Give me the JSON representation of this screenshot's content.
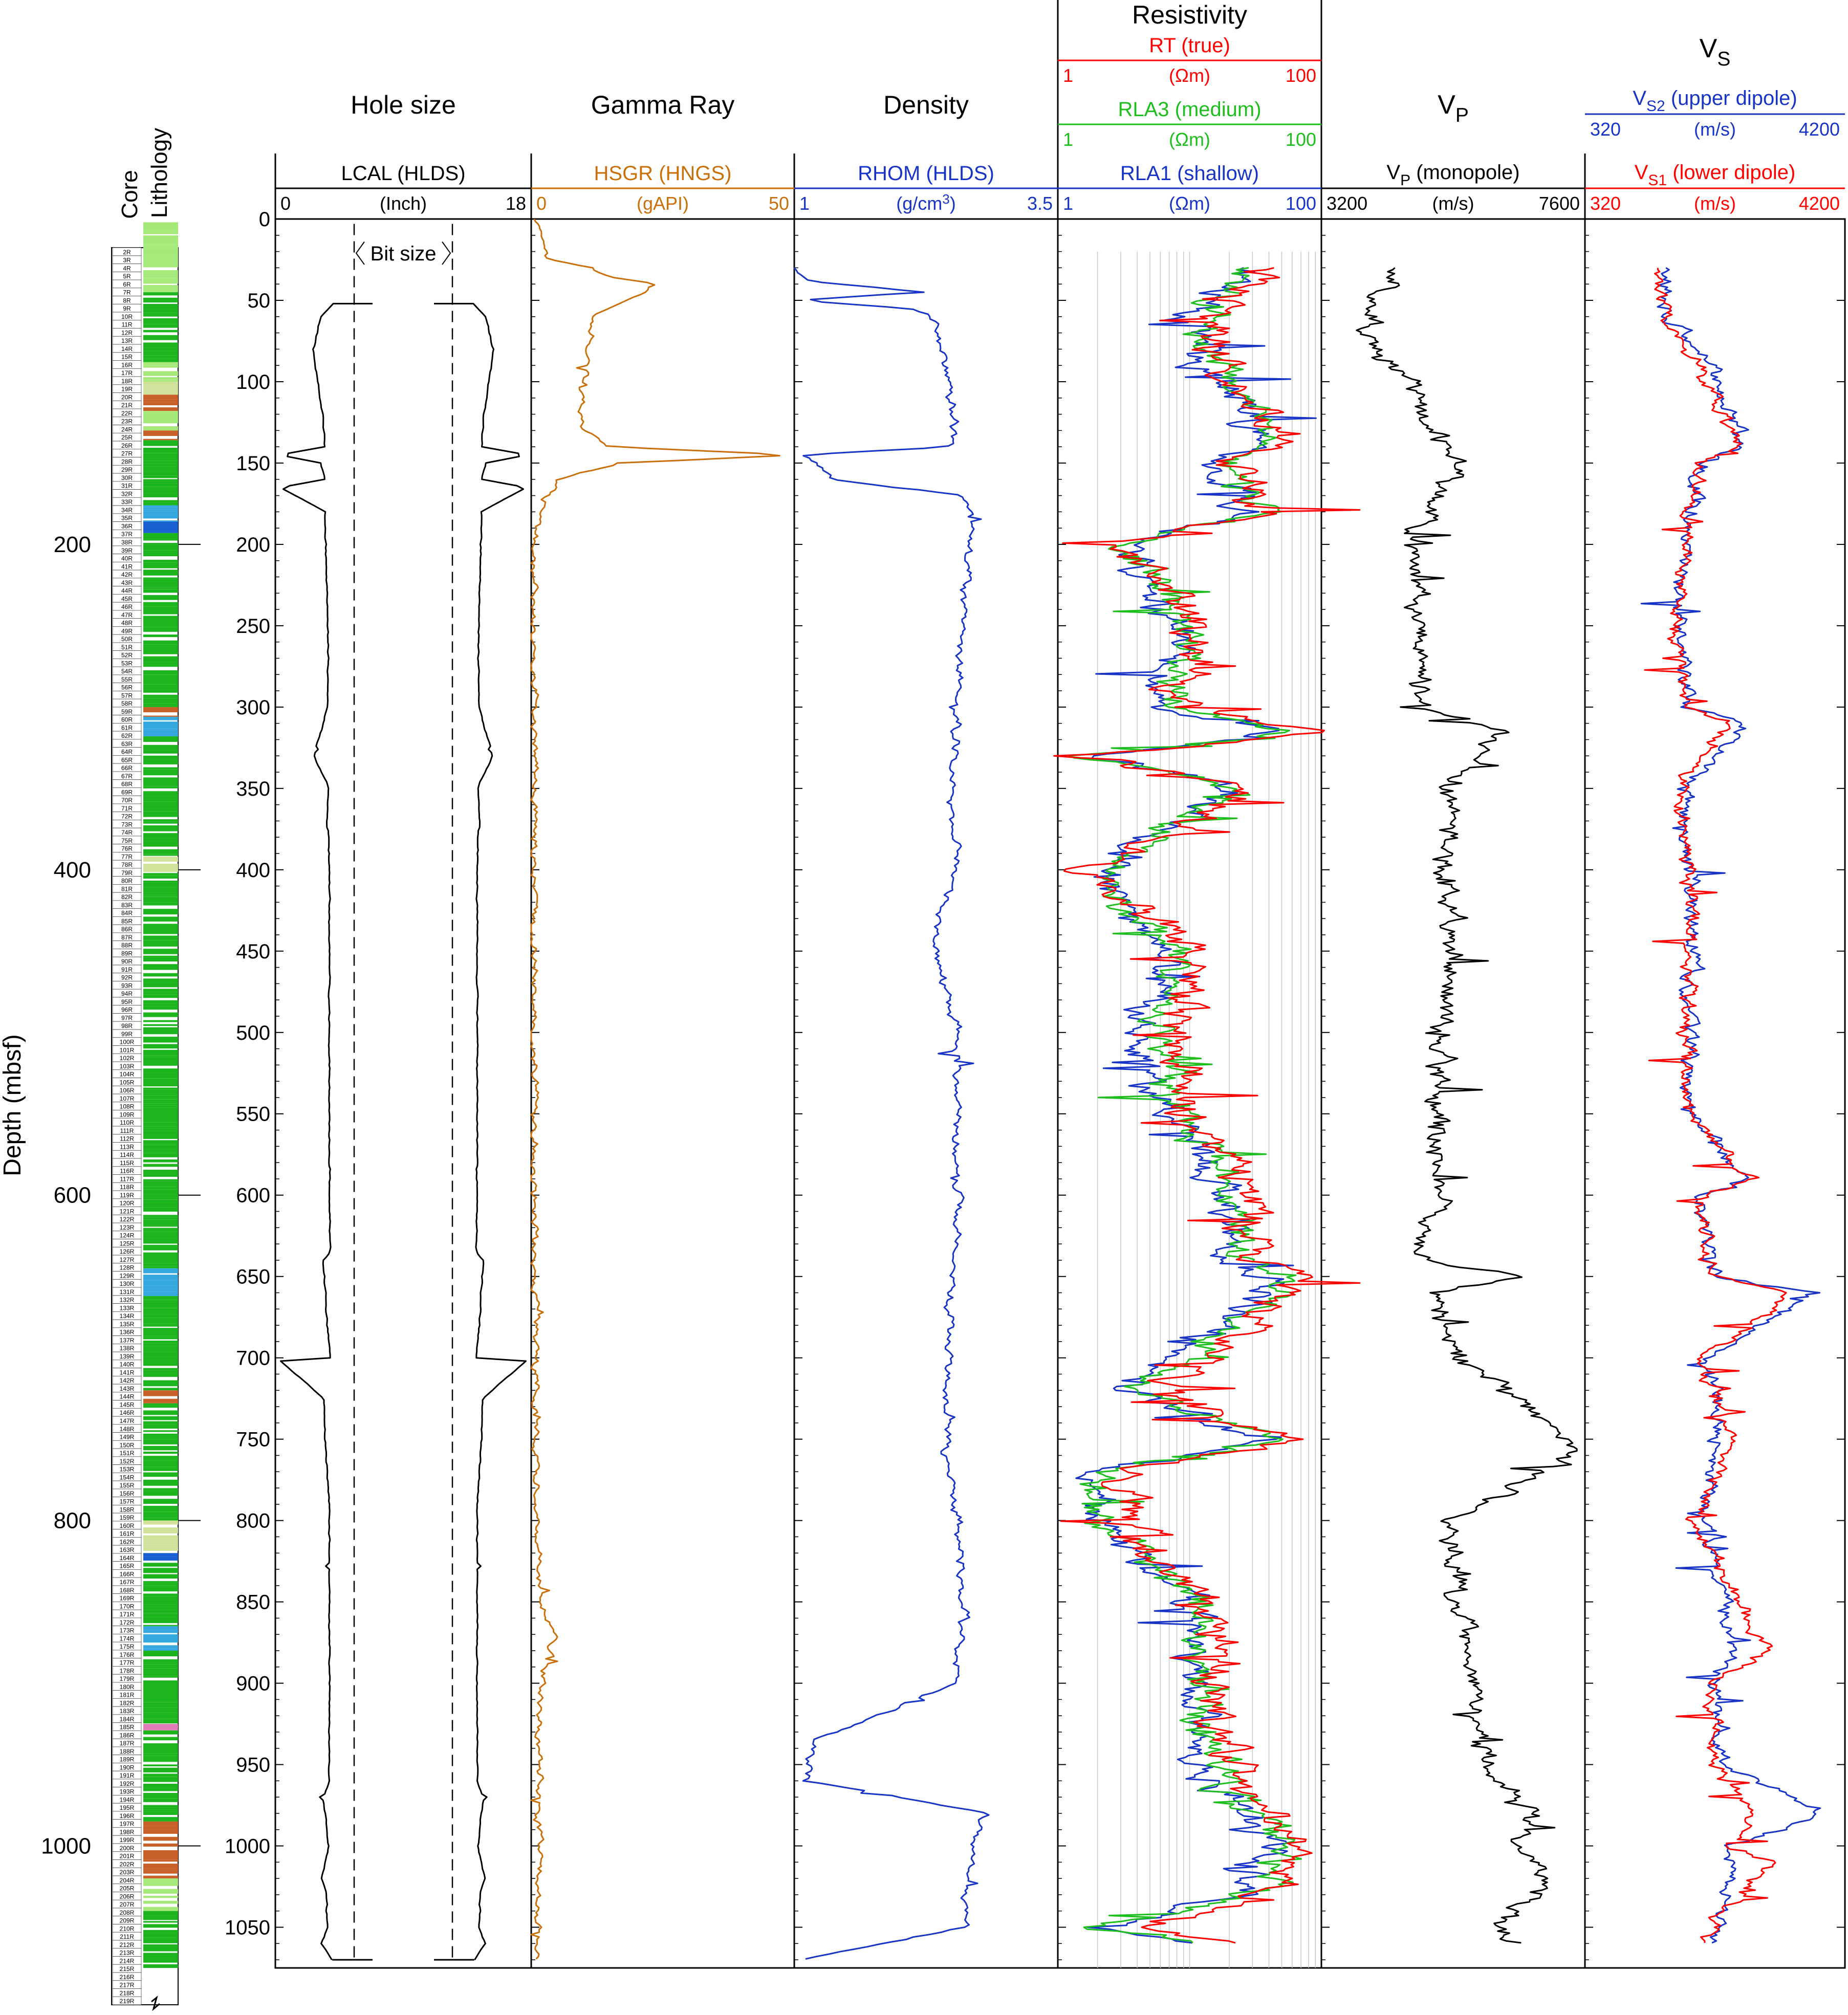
{
  "chart_data": {
    "type": "well-log",
    "depth_axis": {
      "label": "Depth (mbsf)",
      "range": [
        0,
        1075
      ],
      "major_ticks": [
        200,
        400,
        600,
        800,
        1000
      ],
      "track_ticks": [
        0,
        50,
        100,
        150,
        200,
        250,
        300,
        350,
        400,
        450,
        500,
        550,
        600,
        650,
        700,
        750,
        800,
        850,
        900,
        950,
        1000,
        1050
      ],
      "inverted": true
    },
    "core_column": {
      "label_line1": "Core",
      "label_line2": "Lithology",
      "cores_first": 2,
      "cores_last": 219,
      "core_suffix": "R",
      "lithology_colors": {
        "basalt": "#1db51d",
        "light_basalt": "#a6e87a",
        "breccia": "#d1e39a",
        "sediment": "#c8602a",
        "gabbro": "#36a8e0",
        "dike": "#1a5fd1",
        "ash": "#e07ab8"
      },
      "intervals": [
        {
          "from": 2,
          "to": 45,
          "lith": "light_basalt"
        },
        {
          "from": 45,
          "to": 88,
          "lith": "basalt"
        },
        {
          "from": 88,
          "to": 100,
          "lith": "light_basalt"
        },
        {
          "from": 100,
          "to": 108,
          "lith": "breccia"
        },
        {
          "from": 108,
          "to": 118,
          "lith": "sediment"
        },
        {
          "from": 118,
          "to": 130,
          "lith": "light_basalt"
        },
        {
          "from": 130,
          "to": 136,
          "lith": "sediment"
        },
        {
          "from": 136,
          "to": 176,
          "lith": "basalt"
        },
        {
          "from": 176,
          "to": 186,
          "lith": "gabbro"
        },
        {
          "from": 186,
          "to": 193,
          "lith": "dike"
        },
        {
          "from": 193,
          "to": 300,
          "lith": "basalt"
        },
        {
          "from": 300,
          "to": 306,
          "lith": "sediment"
        },
        {
          "from": 306,
          "to": 318,
          "lith": "gabbro"
        },
        {
          "from": 318,
          "to": 392,
          "lith": "basalt"
        },
        {
          "from": 392,
          "to": 402,
          "lith": "breccia"
        },
        {
          "from": 402,
          "to": 645,
          "lith": "basalt"
        },
        {
          "from": 645,
          "to": 662,
          "lith": "gabbro"
        },
        {
          "from": 662,
          "to": 720,
          "lith": "basalt"
        },
        {
          "from": 720,
          "to": 728,
          "lith": "sediment"
        },
        {
          "from": 728,
          "to": 800,
          "lith": "basalt"
        },
        {
          "from": 800,
          "to": 820,
          "lith": "breccia"
        },
        {
          "from": 820,
          "to": 826,
          "lith": "dike"
        },
        {
          "from": 826,
          "to": 865,
          "lith": "basalt"
        },
        {
          "from": 865,
          "to": 880,
          "lith": "gabbro"
        },
        {
          "from": 880,
          "to": 925,
          "lith": "basalt"
        },
        {
          "from": 925,
          "to": 929,
          "lith": "ash"
        },
        {
          "from": 929,
          "to": 985,
          "lith": "basalt"
        },
        {
          "from": 985,
          "to": 1020,
          "lith": "sediment"
        },
        {
          "from": 1020,
          "to": 1040,
          "lith": "light_basalt"
        },
        {
          "from": 1040,
          "to": 1075,
          "lith": "basalt"
        }
      ]
    },
    "tracks": [
      {
        "title": "Hole size",
        "curves": [
          {
            "name": "LCAL (HLDS)",
            "unit": "(Inch)",
            "min": "0",
            "max": "18",
            "color": "#000000"
          }
        ],
        "annotation": "Bit size",
        "bit_size": 9.875,
        "data": {
          "depth": [
            52,
            60,
            80,
            100,
            120,
            140,
            145,
            150,
            160,
            165,
            180,
            200,
            250,
            300,
            330,
            350,
            370,
            380,
            400,
            500,
            600,
            635,
            640,
            700,
            702,
            725,
            800,
            900,
            960,
            970,
            1000,
            1020,
            1030,
            1050,
            1060,
            1070
          ],
          "value": [
            9.9,
            11.6,
            12.7,
            12.1,
            11.3,
            11.1,
            17.5,
            11.6,
            11.0,
            17.3,
            11.1,
            10.9,
            10.6,
            10.6,
            12.6,
            10.5,
            10.7,
            10.5,
            10.4,
            10.4,
            10.4,
            10.3,
            11.3,
            10.3,
            17.2,
            11.2,
            10.4,
            10.4,
            10.4,
            11.3,
            10.5,
            11.5,
            10.8,
            10.7,
            11.5,
            10.0
          ]
        }
      },
      {
        "title": "Gamma Ray",
        "curves": [
          {
            "name": "HSGR (HNGS)",
            "unit": "(gAPI)",
            "min": "0",
            "max": "50",
            "color": "#c9700a"
          }
        ],
        "data": {
          "depth": [
            0,
            10,
            25,
            30,
            35,
            40,
            50,
            60,
            80,
            100,
            120,
            130,
            140,
            145,
            150,
            160,
            170,
            180,
            190,
            200,
            300,
            400,
            500,
            600,
            700,
            800,
            850,
            870,
            900,
            950,
            1000,
            1050,
            1070
          ],
          "value": [
            1,
            2,
            3,
            12,
            14,
            24,
            18,
            12,
            11,
            10,
            9,
            10,
            15,
            50,
            17,
            5,
            3,
            2,
            1,
            0.6,
            0.5,
            0.5,
            0.5,
            0.6,
            0.7,
            0.9,
            1.9,
            4.5,
            1.9,
            1.6,
            1.4,
            1.3,
            1.0
          ]
        }
      },
      {
        "title": "Density",
        "curves": [
          {
            "name": "RHOM (HLDS)",
            "unit": "(g/cm3)",
            "min": "1",
            "max": "3.5",
            "color": "#1834c7"
          }
        ],
        "data": {
          "depth": [
            30,
            38,
            45,
            50,
            55,
            60,
            100,
            140,
            145,
            160,
            170,
            180,
            200,
            300,
            370,
            400,
            440,
            500,
            600,
            700,
            760,
            800,
            850,
            900,
            935,
            960,
            980,
            1000,
            1050,
            1070
          ],
          "value": [
            1.03,
            1.1,
            2.2,
            1.05,
            2.1,
            2.3,
            2.5,
            2.5,
            1.1,
            1.4,
            2.6,
            2.7,
            2.65,
            2.55,
            2.5,
            2.55,
            2.3,
            2.55,
            2.55,
            2.45,
            2.45,
            2.55,
            2.6,
            2.55,
            1.2,
            1.1,
            2.8,
            2.7,
            2.6,
            1.05
          ]
        }
      },
      {
        "title": "Resistivity",
        "log_scale": true,
        "curves": [
          {
            "name": "RT (true)",
            "unit": "(Ωm)",
            "min": "1",
            "max": "100",
            "color": "#ff0000"
          },
          {
            "name": "RLA3 (medium)",
            "unit": "(Ωm)",
            "min": "1",
            "max": "100",
            "color": "#1dbe1d"
          },
          {
            "name": "RLA1 (shallow)",
            "unit": "(Ωm)",
            "min": "1",
            "max": "100",
            "color": "#1834c7"
          }
        ],
        "data": {
          "depth": [
            30,
            60,
            100,
            120,
            140,
            150,
            180,
            200,
            250,
            300,
            315,
            330,
            350,
            400,
            450,
            500,
            550,
            600,
            640,
            650,
            660,
            700,
            720,
            750,
            770,
            800,
            850,
            900,
            950,
            1000,
            1030,
            1050,
            1060
          ],
          "RT": [
            40,
            15,
            20,
            40,
            50,
            20,
            40,
            3,
            12,
            8,
            90,
            2,
            30,
            2,
            10,
            8,
            10,
            30,
            25,
            80,
            60,
            15,
            5,
            60,
            3,
            3,
            15,
            15,
            20,
            60,
            40,
            5,
            20
          ],
          "RLA3": [
            35,
            12,
            18,
            35,
            40,
            18,
            35,
            3,
            10,
            7,
            60,
            2,
            25,
            2,
            8,
            6,
            8,
            25,
            20,
            60,
            50,
            10,
            4,
            50,
            2,
            2,
            12,
            12,
            15,
            50,
            30,
            2,
            15
          ],
          "RLA1": [
            30,
            10,
            15,
            30,
            30,
            15,
            30,
            3,
            8,
            6,
            50,
            2,
            20,
            2,
            6,
            5,
            6,
            20,
            18,
            50,
            40,
            8,
            3,
            40,
            2,
            2,
            10,
            10,
            12,
            40,
            25,
            2,
            12
          ]
        }
      },
      {
        "title": "V",
        "title_sub": "P",
        "curves": [
          {
            "name": "V",
            "name_sub": "P",
            "name_tail": " (monopole)",
            "unit": "(m/s)",
            "min": "3200",
            "max": "7600",
            "color": "#000000"
          }
        ],
        "data": {
          "depth": [
            30,
            50,
            80,
            100,
            120,
            140,
            150,
            200,
            250,
            300,
            315,
            350,
            400,
            450,
            500,
            550,
            600,
            640,
            650,
            660,
            700,
            757,
            800,
            900,
            950,
            980,
            1000,
            1020,
            1050,
            1060
          ],
          "value": [
            4400,
            4200,
            4000,
            4600,
            5000,
            5300,
            5500,
            4700,
            4900,
            4800,
            6100,
            5300,
            5300,
            5400,
            5200,
            5100,
            5200,
            4700,
            6800,
            5100,
            5500,
            7600,
            5300,
            5700,
            5900,
            6800,
            6500,
            7000,
            6200,
            6400
          ]
        }
      },
      {
        "title": "V",
        "title_sub": "S",
        "curves": [
          {
            "name": "V",
            "name_sub": "S2",
            "name_tail": " (upper dipole)",
            "unit": "(m/s)",
            "min": "320",
            "max": "4200",
            "color": "#1834c7"
          },
          {
            "name": "V",
            "name_sub": "S1",
            "name_tail": " (lower dipole)",
            "unit": "(m/s)",
            "min": "320",
            "max": "4200",
            "color": "#ff0000"
          }
        ],
        "data": {
          "depth": [
            30,
            60,
            90,
            140,
            150,
            200,
            250,
            300,
            310,
            350,
            400,
            450,
            500,
            550,
            590,
            600,
            650,
            660,
            700,
            750,
            800,
            850,
            880,
            900,
            950,
            980,
            1000,
            1010,
            1050,
            1060
          ],
          "VS2": [
            1500,
            1600,
            2200,
            2700,
            2100,
            1850,
            1750,
            1900,
            2700,
            1800,
            1900,
            1950,
            1850,
            1900,
            2700,
            2100,
            2300,
            3700,
            2200,
            2300,
            2100,
            2400,
            2500,
            2300,
            2400,
            3900,
            2500,
            2600,
            2300,
            2200
          ],
          "VS1": [
            1400,
            1500,
            2000,
            2600,
            2000,
            1800,
            1700,
            1800,
            2500,
            1700,
            1900,
            1900,
            1800,
            1850,
            2800,
            2000,
            2200,
            3400,
            2100,
            2500,
            2000,
            2600,
            3000,
            2200,
            2300,
            2800,
            2500,
            3100,
            2200,
            2100
          ]
        }
      }
    ]
  }
}
